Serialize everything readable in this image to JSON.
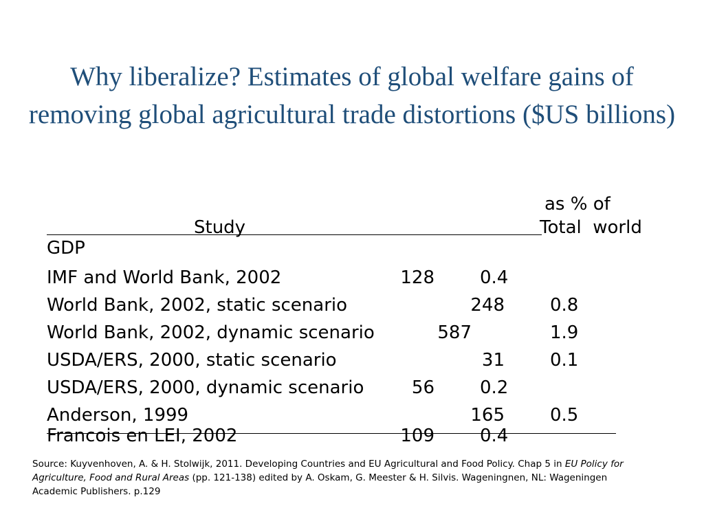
{
  "title": "Why liberalize? Estimates of global welfare gains of removing global agricultural trade distortions ($US billions)",
  "table": {
    "header_pct_line1": "as % of",
    "header_study": "Study",
    "header_pct_line2": "Total  world",
    "header_gdp": "GDP",
    "rows": [
      {
        "study": "IMF and World Bank, 2002",
        "value": "128",
        "pct": "0.4"
      },
      {
        "study": "World Bank, 2002, static scenario",
        "value": "248",
        "pct": "0.8"
      },
      {
        "study": "World Bank, 2002, dynamic scenario",
        "value": "587",
        "pct": "1.9"
      },
      {
        "study": "USDA/ERS, 2000, static scenario",
        "value": "31",
        "pct": "0.1"
      },
      {
        "study": "USDA/ERS, 2000, dynamic scenario",
        "value": "56",
        "pct": "0.2"
      },
      {
        "study": "Anderson, 1999",
        "value": "165",
        "pct": "0.5"
      },
      {
        "study": "Francois en LEI, 2002",
        "value": "109",
        "pct": "0.4"
      }
    ]
  },
  "source": {
    "prefix": "Source: Kuyvenhoven, A. & H. Stolwijk, 2011. Developing Countries and EU Agricultural and Food Policy. Chap 5 in ",
    "book_title": "EU Policy for Agriculture, Food and Rural Areas",
    "suffix": " (pp. 121-138) edited by A. Oskam, G. Meester & H. Silvis. Wageningnen, NL: Wageningen Academic Publishers. p.129"
  }
}
